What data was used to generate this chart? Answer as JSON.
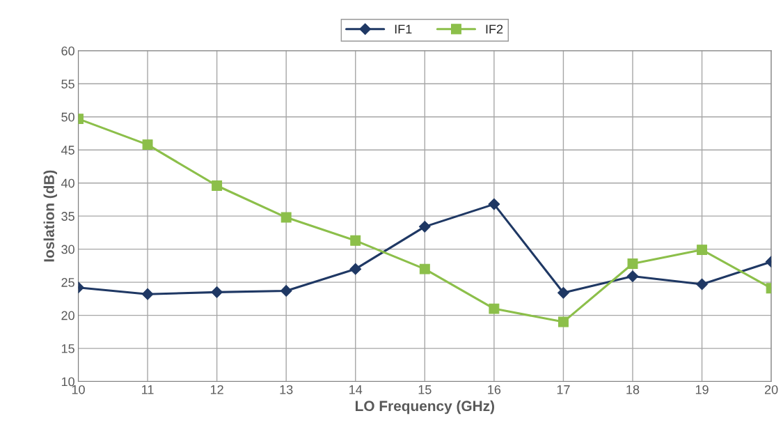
{
  "chart_data": {
    "type": "line",
    "xlabel": "LO Frequency (GHz)",
    "ylabel": "Ioslation (dB)",
    "x": [
      10,
      11,
      12,
      13,
      14,
      15,
      16,
      17,
      18,
      19,
      20
    ],
    "series": [
      {
        "name": "IF1",
        "color": "#1f3864",
        "marker": "diamond",
        "values": [
          24.2,
          23.2,
          23.5,
          23.7,
          27.0,
          33.4,
          36.8,
          23.4,
          25.9,
          24.7,
          28.1
        ]
      },
      {
        "name": "IF2",
        "color": "#8cbf4a",
        "marker": "square",
        "values": [
          49.7,
          45.8,
          39.6,
          34.8,
          31.3,
          27.0,
          21.0,
          19.0,
          27.8,
          29.9,
          24.1
        ]
      }
    ],
    "xlim": [
      10,
      20
    ],
    "xticks": [
      10,
      11,
      12,
      13,
      14,
      15,
      16,
      17,
      18,
      19,
      20
    ],
    "ylim": [
      10,
      60
    ],
    "yticks": [
      10,
      15,
      20,
      25,
      30,
      35,
      40,
      45,
      50,
      55,
      60
    ],
    "grid": true,
    "legend": "top",
    "line_style": "solid"
  }
}
